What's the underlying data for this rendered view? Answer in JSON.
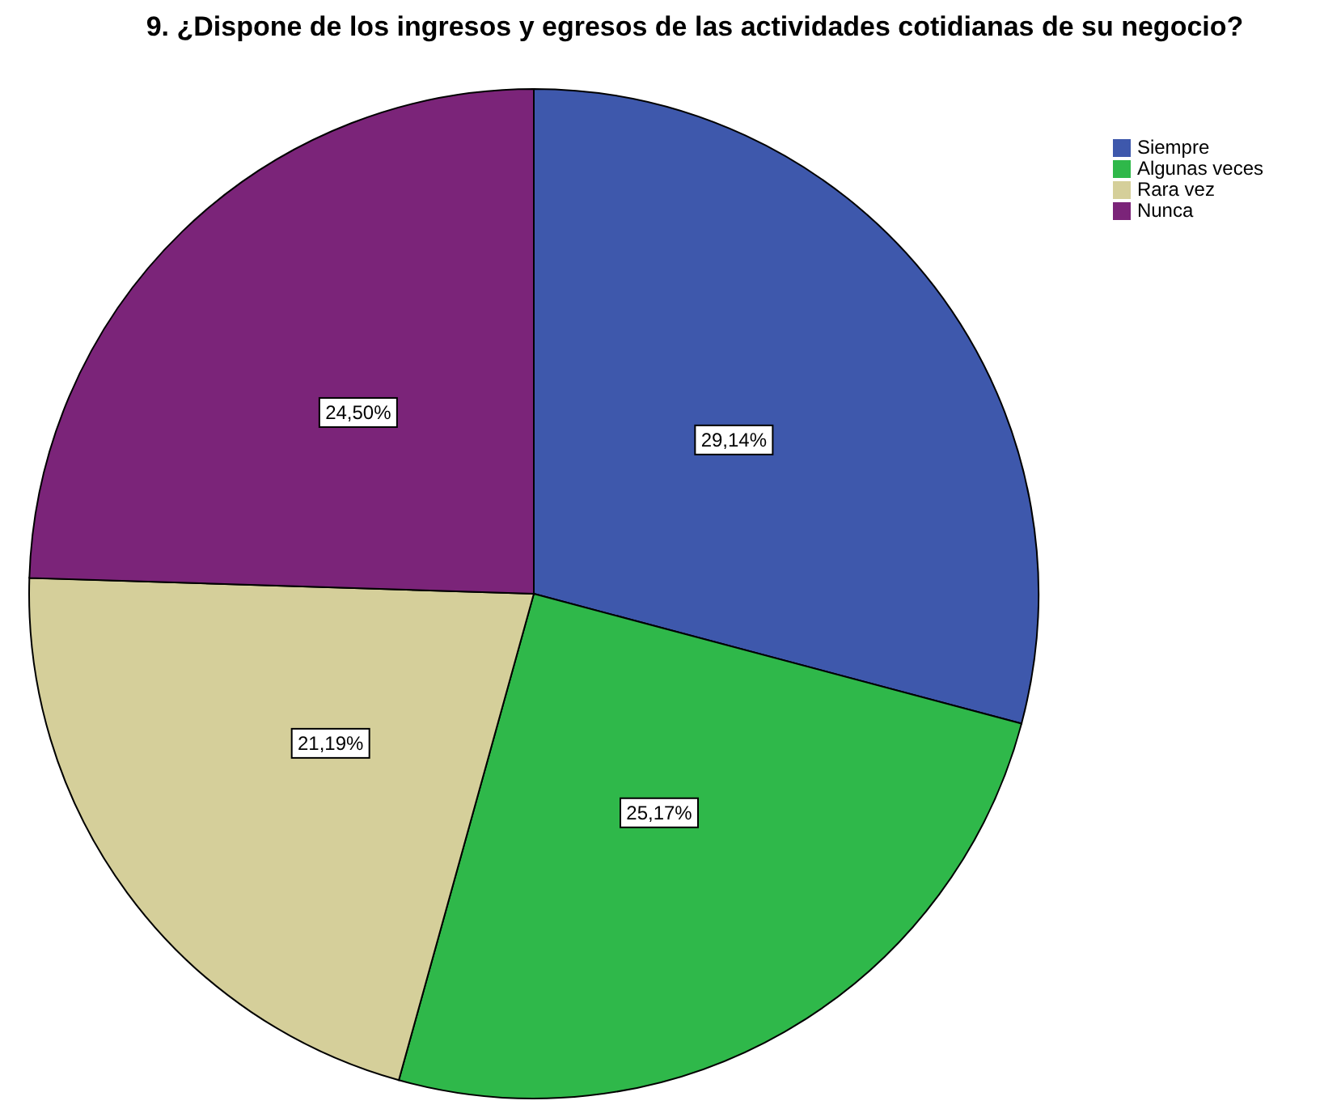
{
  "chart_data": {
    "type": "pie",
    "title": "9. ¿Dispone de los ingresos y egresos de las actividades cotidianas de su negocio?",
    "categories": [
      "Siempre",
      "Algunas veces",
      "Rara vez",
      "Nunca"
    ],
    "values": [
      29.14,
      25.17,
      21.19,
      24.5
    ],
    "colors": [
      "#3e58ac",
      "#2fb84a",
      "#d5cf9a",
      "#7b2479"
    ],
    "value_labels": [
      "29,14%",
      "25,17%",
      "21,19%",
      "24,50%"
    ],
    "legend": "top right"
  }
}
